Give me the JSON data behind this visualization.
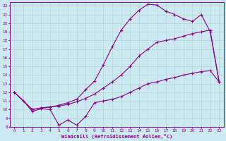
{
  "xlabel": "Windchill (Refroidissement éolien,°C)",
  "bg_color": "#cce8f0",
  "grid_color": "#b0d8d0",
  "line_color": "#880088",
  "xlim": [
    -0.5,
    23.5
  ],
  "ylim": [
    8,
    22.4
  ],
  "xticks": [
    0,
    1,
    2,
    3,
    4,
    5,
    6,
    7,
    8,
    9,
    10,
    11,
    12,
    13,
    14,
    15,
    16,
    17,
    18,
    19,
    20,
    21,
    22,
    23
  ],
  "yticks": [
    8,
    9,
    10,
    11,
    12,
    13,
    14,
    15,
    16,
    17,
    18,
    19,
    20,
    21,
    22
  ],
  "curve1_x": [
    0,
    1,
    2,
    3,
    4,
    5,
    6,
    7,
    8,
    9,
    10,
    11,
    12,
    13,
    14,
    15,
    16,
    17,
    18,
    19,
    20,
    21,
    22,
    23
  ],
  "curve1_y": [
    12.0,
    11.0,
    9.8,
    10.1,
    10.0,
    8.2,
    8.8,
    8.2,
    9.2,
    10.8,
    11.0,
    11.2,
    11.5,
    12.0,
    12.5,
    13.0,
    13.2,
    13.5,
    13.7,
    14.0,
    14.2,
    14.4,
    14.5,
    13.2
  ],
  "curve2_x": [
    0,
    2,
    3,
    4,
    5,
    6,
    7,
    8,
    9,
    10,
    11,
    12,
    13,
    14,
    15,
    16,
    17,
    18,
    19,
    20,
    21,
    22,
    23
  ],
  "curve2_y": [
    12.0,
    10.0,
    10.2,
    10.3,
    10.4,
    10.6,
    10.9,
    11.3,
    11.8,
    12.5,
    13.2,
    14.0,
    15.0,
    16.2,
    17.0,
    17.8,
    18.0,
    18.2,
    18.5,
    18.8,
    19.0,
    19.2,
    13.2
  ],
  "curve3_x": [
    0,
    2,
    3,
    4,
    5,
    6,
    7,
    8,
    9,
    10,
    11,
    12,
    13,
    14,
    15,
    16,
    17,
    18,
    19,
    20,
    21,
    22,
    23
  ],
  "curve3_y": [
    12.0,
    10.0,
    10.2,
    10.3,
    10.5,
    10.8,
    11.2,
    12.3,
    13.3,
    15.2,
    17.3,
    19.2,
    20.5,
    21.5,
    22.2,
    22.1,
    21.4,
    21.0,
    20.5,
    20.2,
    21.0,
    19.0,
    13.2
  ]
}
